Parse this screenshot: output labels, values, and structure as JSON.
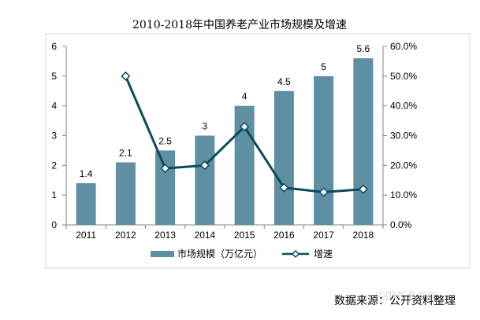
{
  "chart_data": {
    "type": "bar",
    "title": "2010-2018年中国养老产业市场规模及增速",
    "categories": [
      "2011",
      "2012",
      "2013",
      "2014",
      "2015",
      "2016",
      "2017",
      "2018"
    ],
    "series": [
      {
        "name": "市场规模（万亿元）",
        "type": "bar",
        "axis": "left",
        "color": "#5f8fa3",
        "values": [
          1.4,
          2.1,
          2.5,
          3,
          4,
          4.5,
          5,
          5.6
        ],
        "labels": [
          "1.4",
          "2.1",
          "2.5",
          "3",
          "4",
          "4.5",
          "5",
          "5.6"
        ]
      },
      {
        "name": "增速",
        "type": "line",
        "axis": "right",
        "color": "#0d4a5c",
        "values": [
          null,
          50.0,
          19.0,
          20.0,
          33.0,
          12.5,
          11.0,
          12.0
        ]
      }
    ],
    "y_left": {
      "min": 0,
      "max": 6,
      "ticks": [
        "0",
        "1",
        "2",
        "3",
        "4",
        "5",
        "6"
      ]
    },
    "y_right": {
      "min": 0,
      "max": 60,
      "ticks": [
        "0.0%",
        "10.0%",
        "20.0%",
        "30.0%",
        "40.0%",
        "50.0%",
        "60.0%"
      ]
    },
    "legend_position": "bottom",
    "grid": false
  },
  "source_text": "数据来源：公开资料整理",
  "watermark_text": "中国养老咨询"
}
